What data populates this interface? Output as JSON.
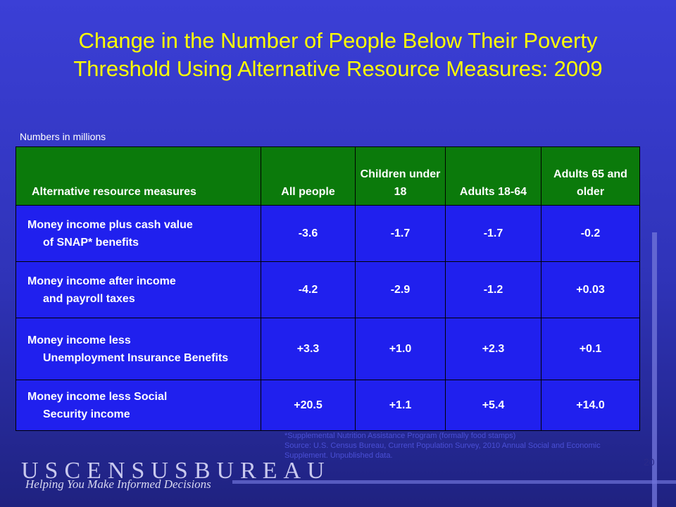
{
  "title": "Change in the Number of People Below Their Poverty Threshold Using Alternative Resource Measures: 2009",
  "note": "Numbers in millions",
  "columns": [
    "Alternative resource measures",
    "All people",
    "Children under 18",
    "Adults 18-64",
    "Adults 65 and older"
  ],
  "rows": [
    {
      "label_first": "Money income plus cash value",
      "label_rest": "of SNAP* benefits",
      "values": [
        "-3.6",
        "-1.7",
        "-1.7",
        "-0.2"
      ]
    },
    {
      "label_first": "Money income after income",
      "label_rest": "and payroll taxes",
      "values": [
        "-4.2",
        "-2.9",
        "-1.2",
        "+0.03"
      ]
    },
    {
      "label_first": "Money income less",
      "label_rest": "Unemployment Insurance Benefits",
      "values": [
        "+3.3",
        "+1.0",
        "+2.3",
        "+0.1"
      ]
    },
    {
      "label_first": "Money income less Social",
      "label_rest": "Security income",
      "values": [
        "+20.5",
        "+1.1",
        "+5.4",
        "+14.0"
      ]
    }
  ],
  "footnote": {
    "line1": "*Supplemental Nutrition Assistance Program (formally food stamps)",
    "line2": "Source: U.S. Census Bureau, Current Population Survey, 2010 Annual Social and Economic Supplement. Unpublished data."
  },
  "brand": "USCENSUSBUREAU",
  "tagline": "Helping You Make Informed Decisions",
  "page_number": "20",
  "colors": {
    "title": "#ffff00",
    "header_bg": "#0b7a0b",
    "cell_bg": "#2020ee"
  }
}
